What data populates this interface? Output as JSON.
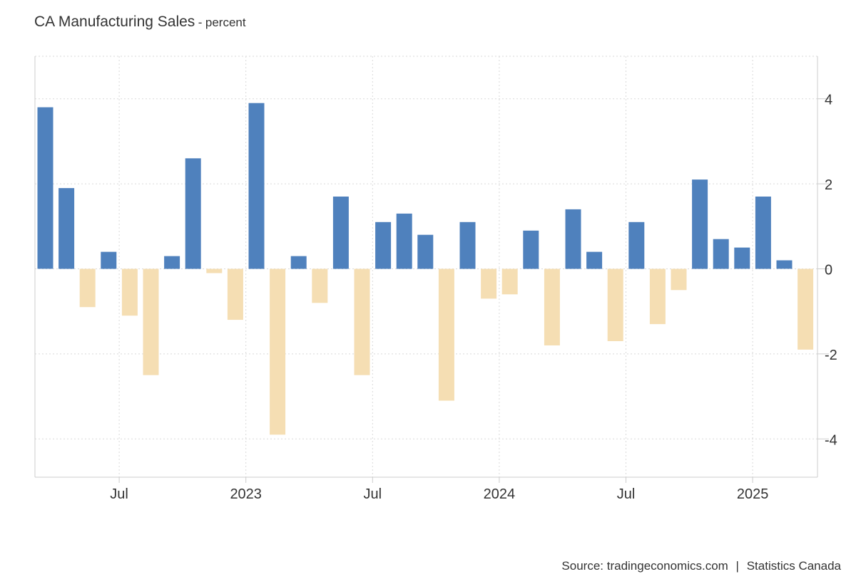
{
  "title": "CA Manufacturing Sales",
  "title_separator": "-",
  "unit": "percent",
  "source": {
    "label": "Source:",
    "site": "tradingeconomics.com",
    "separator": "|",
    "provider": "Statistics Canada"
  },
  "colors": {
    "positive": "#4f81bd",
    "negative": "#f5deb3",
    "grid": "#d9d9d9",
    "axis": "#cccccc",
    "text": "#333333"
  },
  "chart_data": {
    "type": "bar",
    "title": "CA Manufacturing Sales",
    "xlabel": "",
    "ylabel": "percent",
    "ylim": [
      -4.9,
      5.0
    ],
    "yticks": [
      4,
      2,
      0,
      -2,
      -4
    ],
    "grid": true,
    "categories": [
      "2022-03",
      "2022-04",
      "2022-05",
      "2022-06",
      "2022-07",
      "2022-08",
      "2022-09",
      "2022-10",
      "2022-11",
      "2022-12",
      "2023-01",
      "2023-02",
      "2023-03",
      "2023-04",
      "2023-05",
      "2023-06",
      "2023-07",
      "2023-08",
      "2023-09",
      "2023-10",
      "2023-11",
      "2023-12",
      "2024-01",
      "2024-02",
      "2024-03",
      "2024-04",
      "2024-05",
      "2024-06",
      "2024-07",
      "2024-08",
      "2024-09",
      "2024-10",
      "2024-11",
      "2024-12",
      "2025-01",
      "2025-02",
      "2025-03"
    ],
    "values": [
      3.8,
      1.9,
      -0.9,
      0.4,
      -1.1,
      -2.5,
      0.3,
      2.6,
      -0.1,
      -1.2,
      3.9,
      -3.9,
      0.3,
      -0.8,
      1.7,
      -2.5,
      1.1,
      1.3,
      0.8,
      -3.1,
      1.1,
      -0.7,
      -0.6,
      0.9,
      -1.8,
      1.4,
      0.4,
      -1.7,
      1.1,
      -1.3,
      -0.5,
      2.1,
      0.7,
      0.5,
      1.7,
      0.2,
      -1.9
    ],
    "x_ticks": [
      {
        "label": "Jul",
        "index": 4
      },
      {
        "label": "2023",
        "index": 10
      },
      {
        "label": "Jul",
        "index": 16
      },
      {
        "label": "2024",
        "index": 22
      },
      {
        "label": "Jul",
        "index": 28
      },
      {
        "label": "2025",
        "index": 34
      }
    ]
  }
}
